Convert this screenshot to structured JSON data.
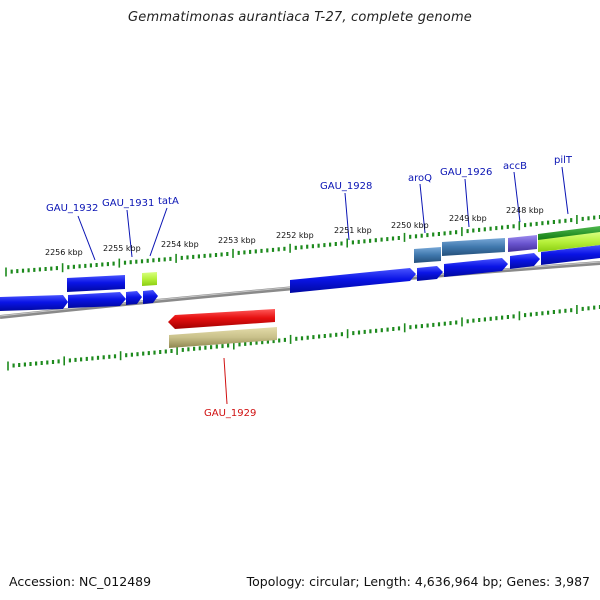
{
  "title": "Gemmatimonas aurantiaca T-27, complete genome",
  "footer": {
    "accession": "Accession: NC_012489",
    "summary": "Topology: circular; Length: 4,636,964 bp; Genes: 3,987"
  },
  "colors": {
    "backbone": "#8a8a8a",
    "gene_blue": "#0a14e6",
    "gene_red": "#e61010",
    "gene_light_green": "#b6f03a",
    "gene_dark_green": "#1f8a1f",
    "gene_steel": "#3f78ad",
    "gene_purple": "#6a55cf",
    "gene_olive": "#c8c08a",
    "tick": "#1d8a1d",
    "label_blue": "#0a14b4",
    "label_red": "#d01010"
  },
  "scale_labels": [
    "2256 kbp",
    "2255 kbp",
    "2254 kbp",
    "2253 kbp",
    "2252 kbp",
    "2251 kbp",
    "2250 kbp",
    "2249 kbp",
    "2248 kbp"
  ],
  "gene_labels": [
    {
      "id": "GAU_1932",
      "text": "GAU_1932",
      "color": "label_blue"
    },
    {
      "id": "GAU_1931",
      "text": "GAU_1931",
      "color": "label_blue"
    },
    {
      "id": "tatA",
      "text": "tatA",
      "color": "label_blue"
    },
    {
      "id": "GAU_1928",
      "text": "GAU_1928",
      "color": "label_blue"
    },
    {
      "id": "aroQ",
      "text": "aroQ",
      "color": "label_blue"
    },
    {
      "id": "GAU_1926",
      "text": "GAU_1926",
      "color": "label_blue"
    },
    {
      "id": "accB",
      "text": "accB",
      "color": "label_blue"
    },
    {
      "id": "pilT",
      "text": "pilT",
      "color": "label_blue"
    },
    {
      "id": "GAU_1929",
      "text": "GAU_1929",
      "color": "label_red"
    }
  ]
}
